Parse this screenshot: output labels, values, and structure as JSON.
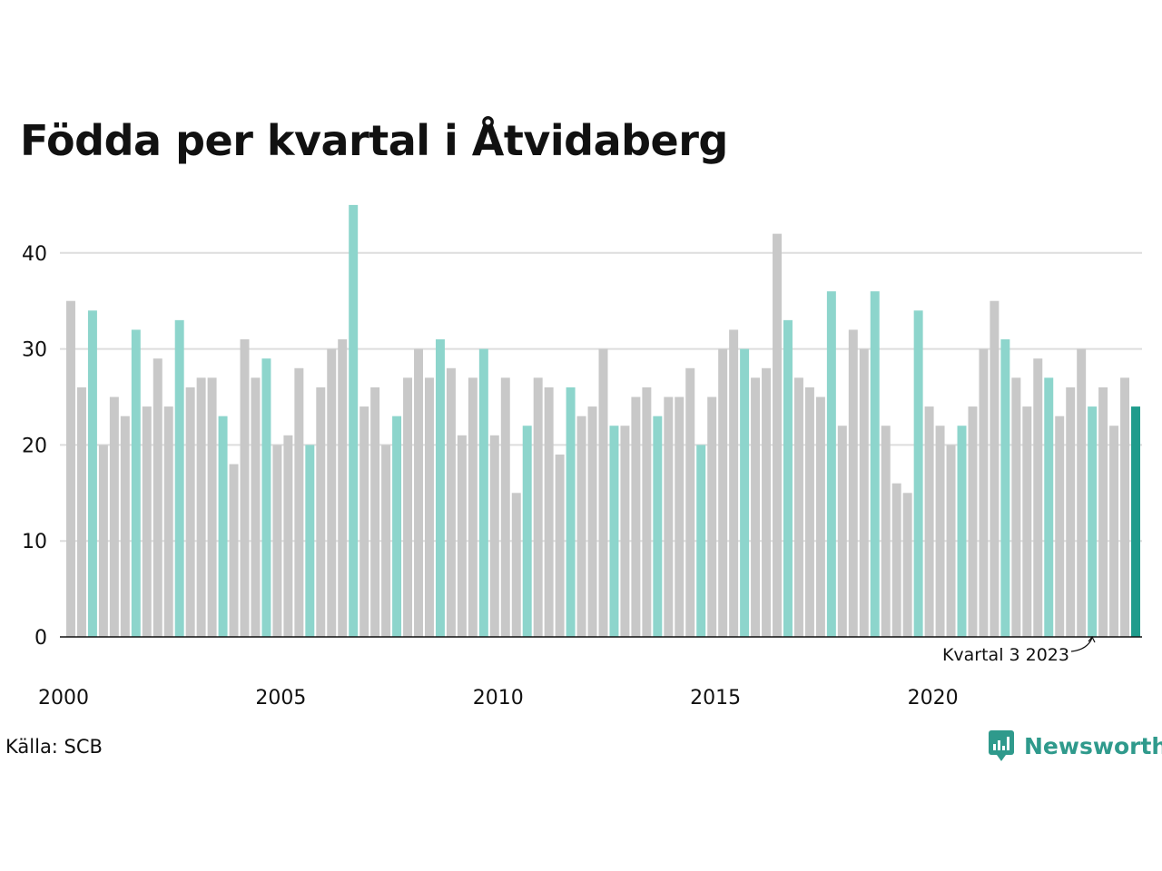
{
  "title": "Födda per kvartal i Åtvidaberg",
  "source": "Källa: SCB",
  "brand": {
    "name": "Newsworthy",
    "icon": "newsworthy-logo-icon"
  },
  "colors": {
    "other_quarters": "#c8c8c8",
    "quarter_3": "#8dd5cc",
    "latest": "#1f9c8c",
    "grid": "#dddddd",
    "baseline": "#111111"
  },
  "chart_data": {
    "type": "bar",
    "title": "Födda per kvartal i Åtvidaberg",
    "xlabel": "",
    "ylabel": "",
    "ylim": [
      0,
      45
    ],
    "yticks": [
      0,
      10,
      20,
      30,
      40
    ],
    "xticks": [
      "2000",
      "2005",
      "2010",
      "2015",
      "2020"
    ],
    "grid": true,
    "start": "2000 Q1",
    "highlight": "Kvartal 3 (turquoise); latest bar (dark teal)",
    "annotation": "Kvartal 3 2023",
    "values": [
      35,
      26,
      34,
      20,
      25,
      23,
      32,
      24,
      29,
      24,
      33,
      26,
      27,
      27,
      23,
      18,
      31,
      27,
      29,
      20,
      21,
      28,
      20,
      26,
      30,
      31,
      45,
      24,
      26,
      20,
      23,
      27,
      30,
      27,
      31,
      28,
      21,
      27,
      30,
      21,
      27,
      15,
      22,
      27,
      26,
      19,
      26,
      23,
      24,
      30,
      22,
      22,
      25,
      26,
      23,
      25,
      25,
      28,
      20,
      25,
      30,
      32,
      30,
      27,
      28,
      42,
      33,
      27,
      26,
      25,
      36,
      22,
      32,
      30,
      36,
      22,
      16,
      15,
      34,
      24,
      22,
      20,
      22,
      24,
      30,
      35,
      31,
      27,
      24,
      29,
      27,
      23,
      26,
      30,
      24,
      26,
      22,
      27,
      24
    ]
  }
}
